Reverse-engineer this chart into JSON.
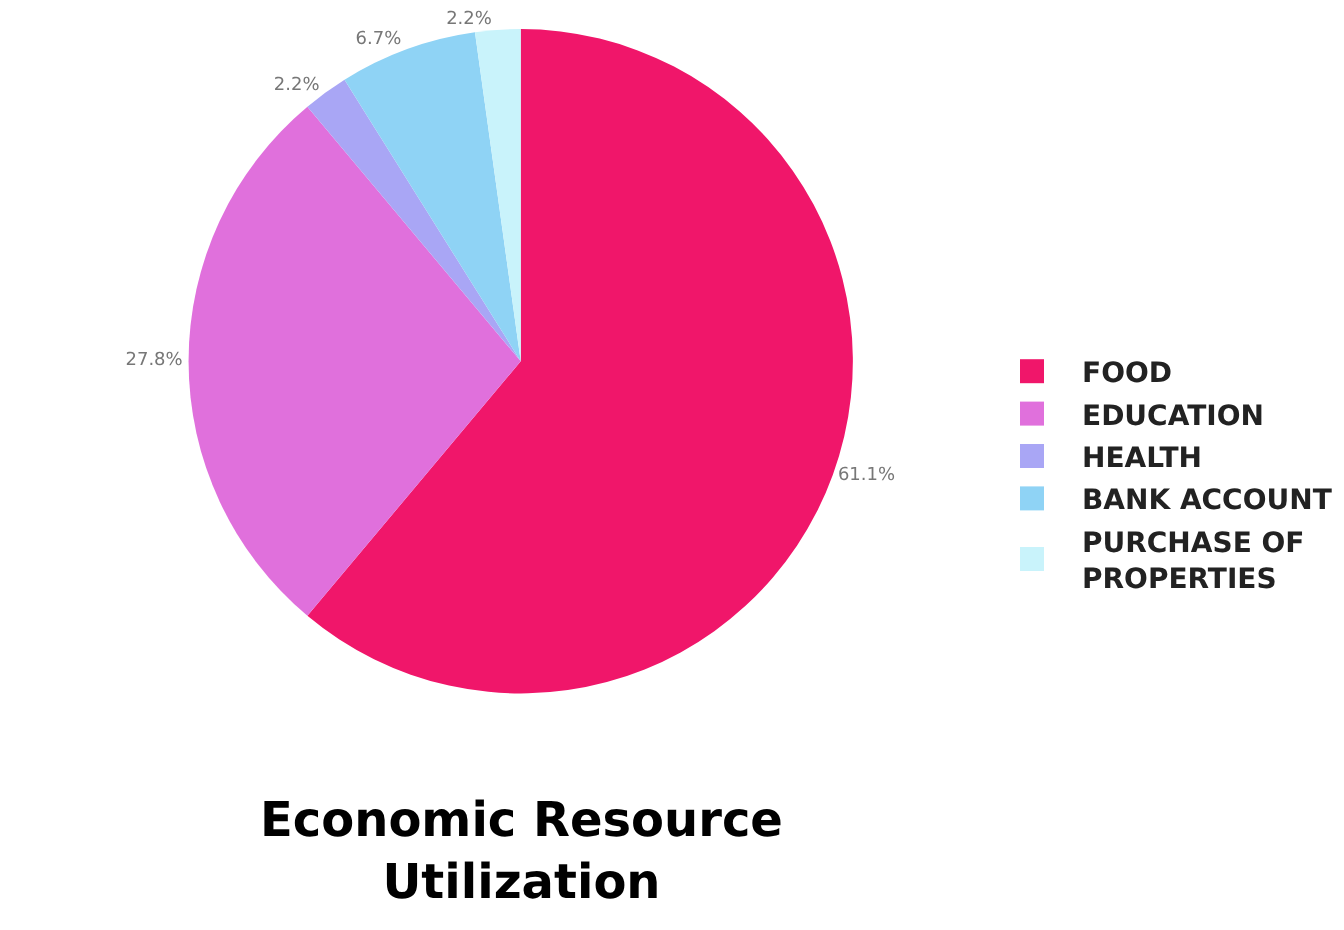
{
  "chart_data": {
    "type": "pie",
    "title": "Economic Resource Utilization",
    "categories": [
      "FOOD",
      "EDUCATION",
      "HEALTH",
      "BANK ACCOUNT",
      "PURCHASE OF PROPERTIES"
    ],
    "values": [
      61.1,
      27.8,
      2.2,
      6.7,
      2.2
    ],
    "value_labels": [
      "61.1%",
      "27.8%",
      "2.2%",
      "6.7%",
      "2.2%"
    ],
    "colors": [
      "#f0166a",
      "#e070dc",
      "#a9a6f5",
      "#8fd3f5",
      "#c9f3fb"
    ],
    "legend": "right"
  }
}
